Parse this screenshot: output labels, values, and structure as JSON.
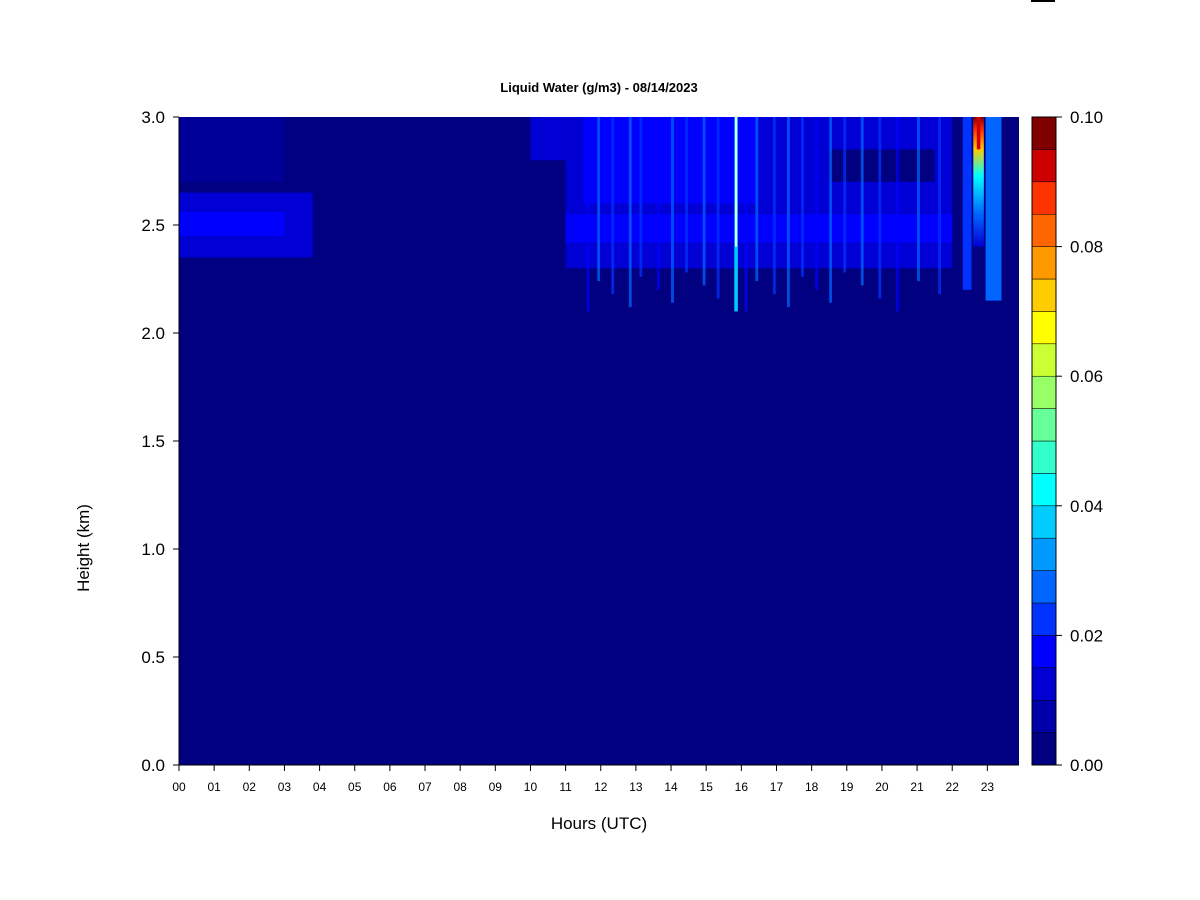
{
  "chart_data": {
    "type": "heatmap",
    "title": "Liquid Water (g/m3) - 08/14/2023",
    "xlabel": "Hours (UTC)",
    "ylabel": "Height (km)",
    "x_ticks": [
      "00",
      "01",
      "02",
      "03",
      "04",
      "05",
      "06",
      "07",
      "08",
      "09",
      "10",
      "11",
      "12",
      "13",
      "14",
      "15",
      "16",
      "17",
      "18",
      "19",
      "20",
      "21",
      "22",
      "23"
    ],
    "xlim": [
      0,
      23.9
    ],
    "y_ticks": [
      "0.0",
      "0.5",
      "1.0",
      "1.5",
      "2.0",
      "2.5",
      "3.0"
    ],
    "ylim": [
      0,
      3.0
    ],
    "colorbar": {
      "ticks": [
        "0.00",
        "0.02",
        "0.04",
        "0.06",
        "0.08",
        "0.10"
      ],
      "range": [
        0,
        0.1
      ],
      "levels": 20,
      "colors": [
        "#000080",
        "#0000aa",
        "#0000d4",
        "#0000ff",
        "#0033ff",
        "#0066ff",
        "#0099ff",
        "#00ccff",
        "#00ffff",
        "#33ffcc",
        "#66ff99",
        "#99ff66",
        "#ccff33",
        "#ffff00",
        "#ffcc00",
        "#ff9900",
        "#ff6600",
        "#ff3300",
        "#cc0000",
        "#800000"
      ]
    },
    "features": [
      {
        "hour_start": 0.0,
        "hour_end": 3.8,
        "height_low": 2.35,
        "height_high": 2.65,
        "value": 0.012
      },
      {
        "hour_start": 11.0,
        "hour_end": 22.0,
        "height_low": 2.3,
        "height_high": 3.0,
        "value": 0.012
      },
      {
        "hour_start": 11.5,
        "hour_end": 16.5,
        "height_low": 2.6,
        "height_high": 3.0,
        "value": 0.016
      },
      {
        "hour_start": 15.8,
        "hour_end": 15.9,
        "height_low": 2.1,
        "height_high": 3.0,
        "value": 0.04
      },
      {
        "hour_start": 22.6,
        "hour_end": 22.9,
        "height_low": 2.4,
        "height_high": 3.0,
        "value": 0.07
      },
      {
        "hour_start": 22.7,
        "hour_end": 22.8,
        "height_low": 2.85,
        "height_high": 3.0,
        "value": 0.09
      }
    ]
  }
}
